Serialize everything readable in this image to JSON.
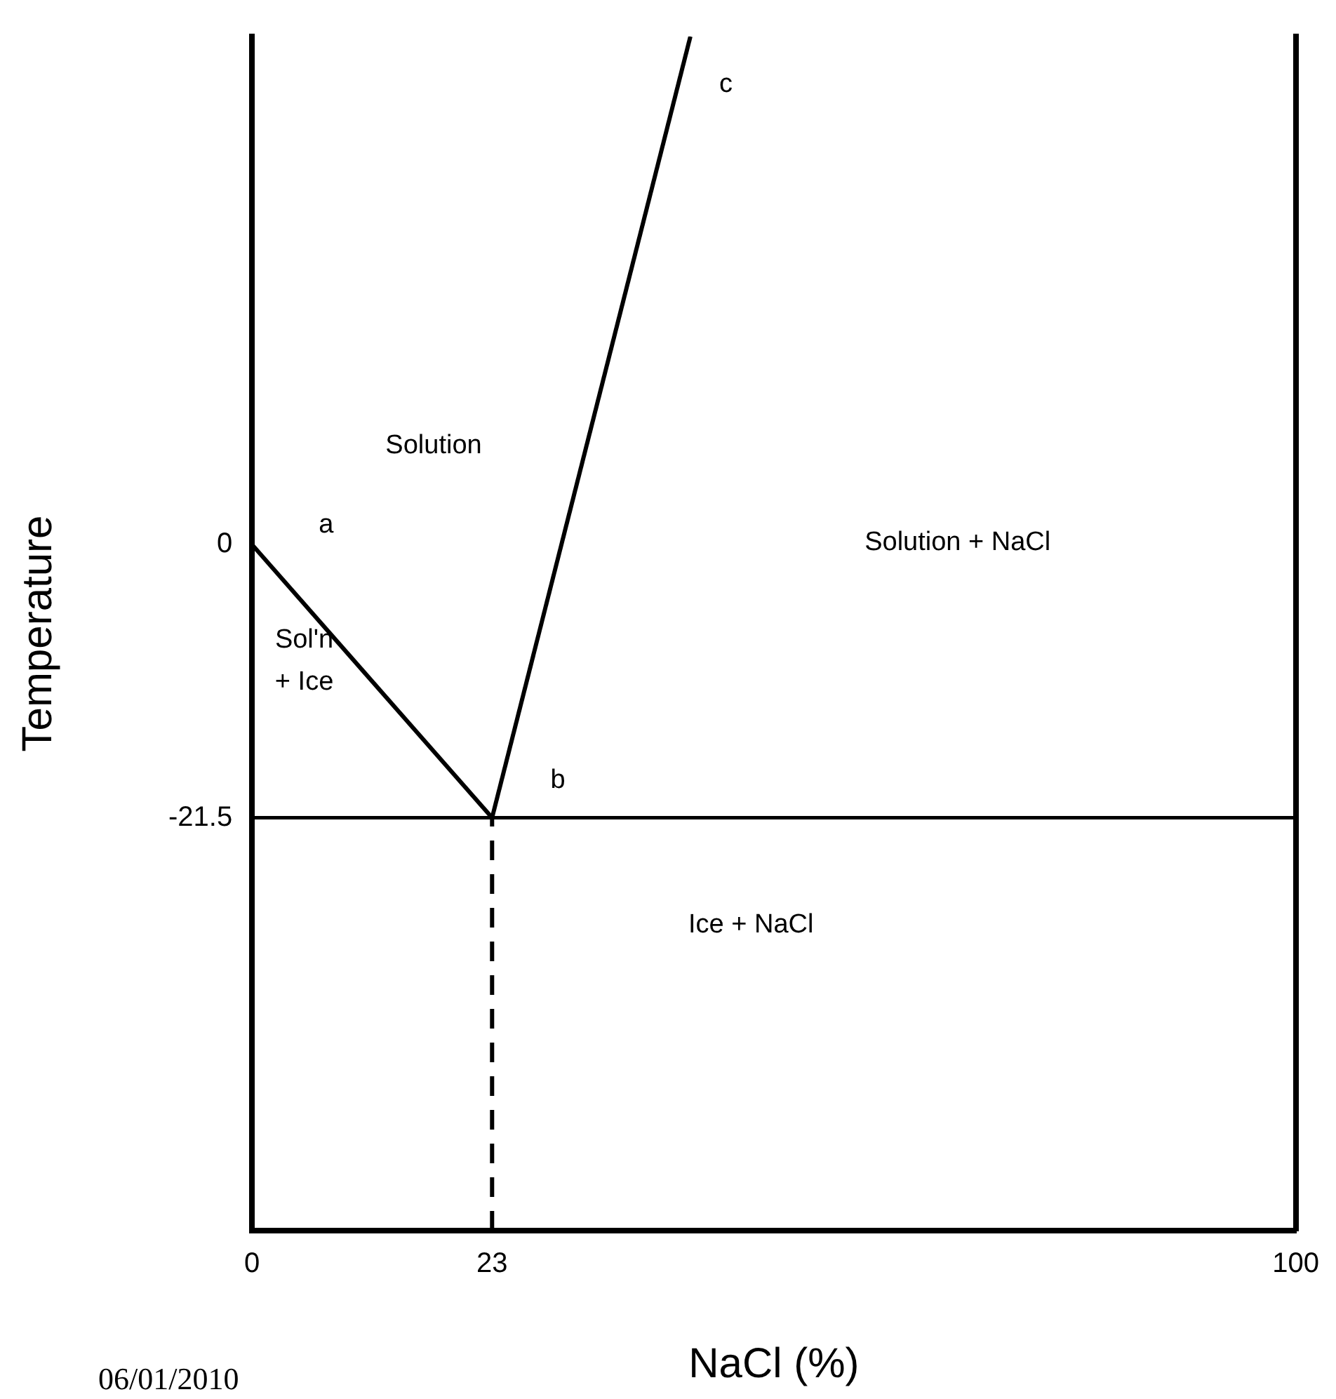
{
  "chart_data": {
    "type": "line",
    "xlabel": "NaCl (%)",
    "ylabel": "Temperature",
    "xlim": [
      0,
      100
    ],
    "ylim": [
      -54,
      40
    ],
    "xticks": [
      0,
      23,
      100
    ],
    "yticks": [
      0,
      -21.5
    ],
    "grid": false,
    "legend": false,
    "marker": "none",
    "series": [
      {
        "color": "#000000",
        "x": [
          0,
          23
        ],
        "values": [
          0,
          -21.5
        ]
      },
      {
        "color": "#000000",
        "x": [
          23,
          42
        ],
        "values": [
          -21.5,
          40
        ]
      },
      {
        "color": "#000000",
        "x": [
          23,
          23
        ],
        "values": [
          -54,
          -21.5
        ],
        "line_style": "dashed"
      }
    ],
    "ref_lines": [
      {
        "axis": "y",
        "value": -21.5,
        "color": "#000000"
      }
    ],
    "annotations": [
      "a",
      "b",
      "c",
      "Solution",
      "Solution + NaCl",
      "Sol'n\n+ Ice",
      "Ice + NaCl",
      "06/01/2010"
    ]
  }
}
